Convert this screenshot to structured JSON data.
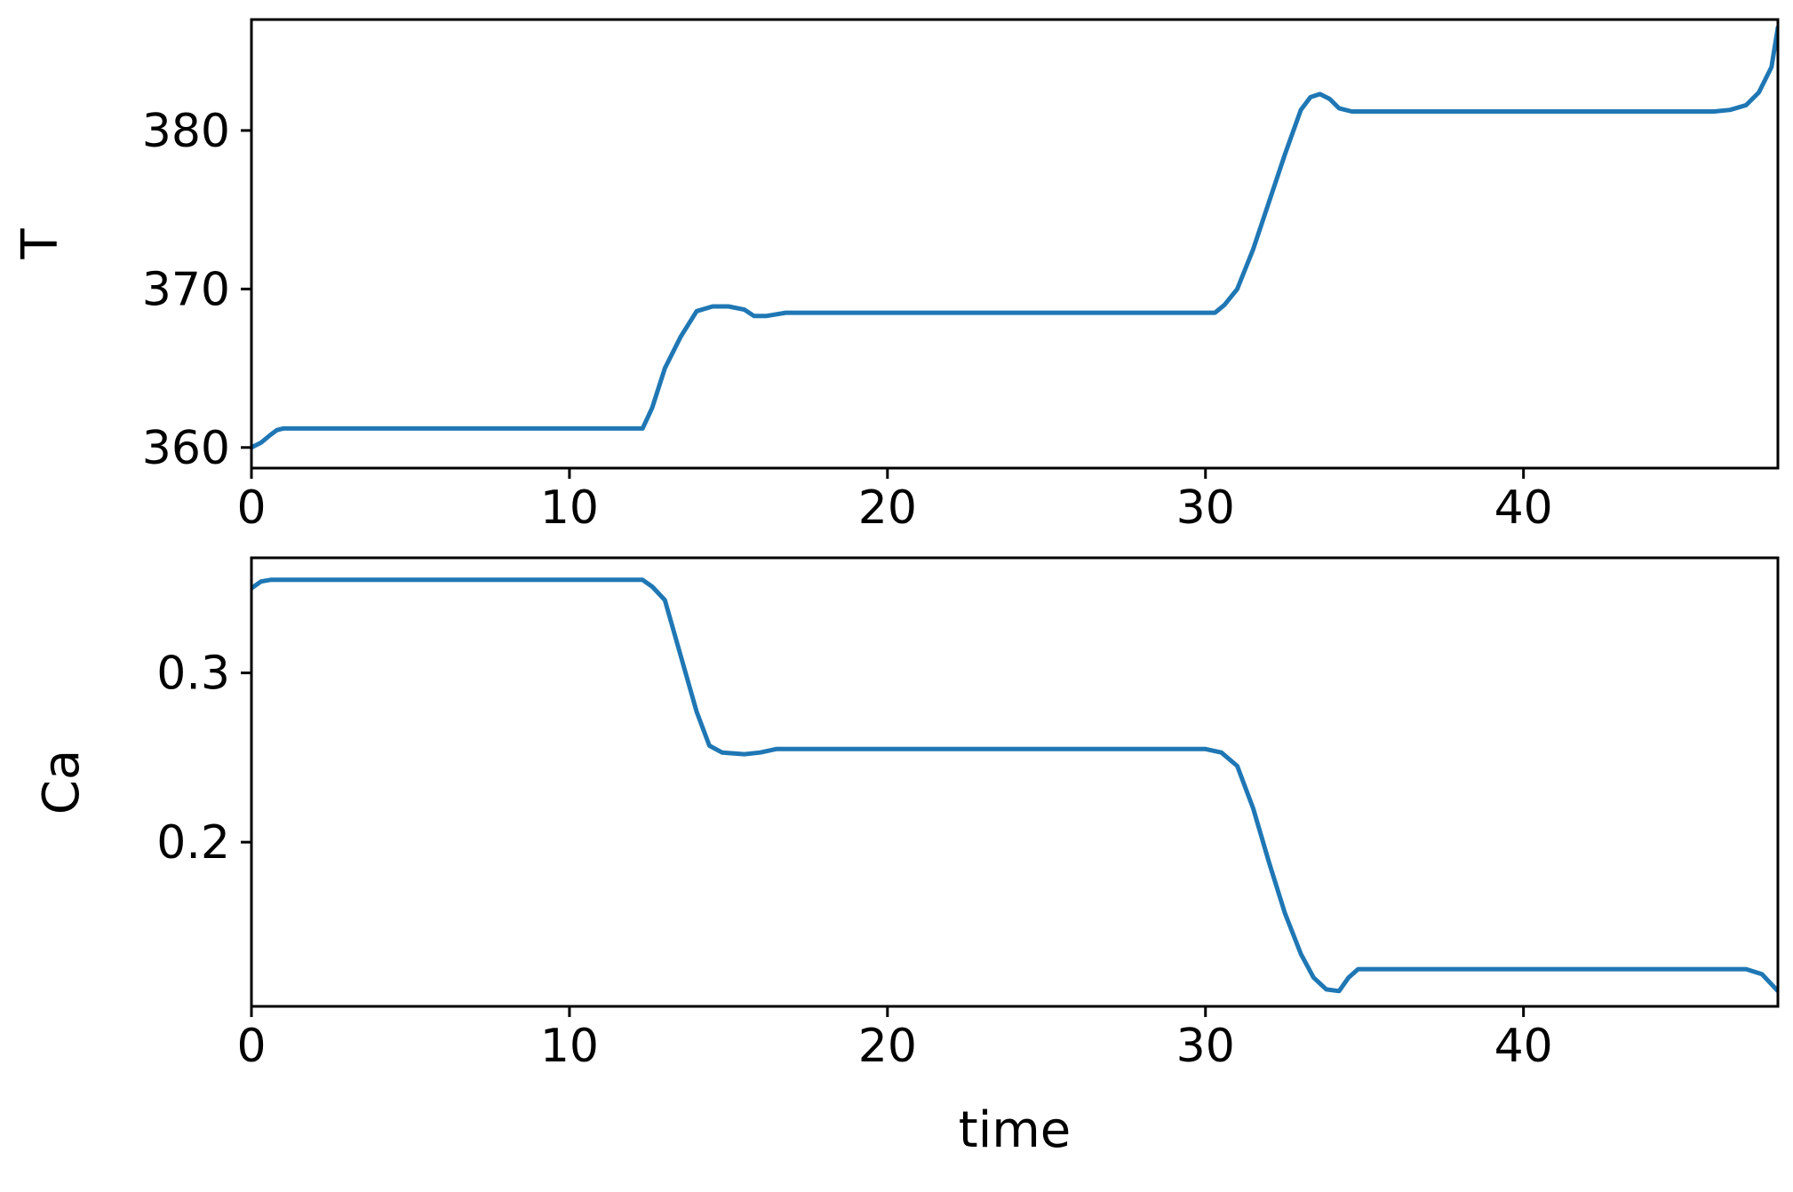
{
  "colors": {
    "line": "#1f77b4",
    "axes": "#000000",
    "background": "#ffffff"
  },
  "chart_data": [
    {
      "type": "line",
      "title": "",
      "xlabel": "",
      "ylabel": "T",
      "xlim": [
        0,
        48
      ],
      "ylim": [
        358.7,
        387
      ],
      "xticks": [
        0,
        10,
        20,
        30,
        40
      ],
      "yticks": [
        360,
        370,
        380
      ],
      "grid": false,
      "series": [
        {
          "x": [
            0,
            0.3,
            0.6,
            0.8,
            1,
            2,
            5,
            8,
            10,
            12,
            12.3,
            12.6,
            13,
            13.5,
            14,
            14.5,
            15,
            15.5,
            15.8,
            16.2,
            16.8,
            17,
            20,
            25,
            30,
            30.3,
            30.6,
            31,
            31.5,
            32,
            32.5,
            33,
            33.3,
            33.6,
            33.9,
            34.2,
            34.6,
            35,
            36,
            40,
            44,
            46,
            46.5,
            47,
            47.4,
            47.8,
            48
          ],
          "y": [
            360,
            360.3,
            360.8,
            361.1,
            361.2,
            361.2,
            361.2,
            361.2,
            361.2,
            361.2,
            361.2,
            362.5,
            365,
            367,
            368.6,
            368.9,
            368.9,
            368.7,
            368.3,
            368.3,
            368.5,
            368.5,
            368.5,
            368.5,
            368.5,
            368.5,
            369,
            370,
            372.5,
            375.5,
            378.5,
            381.3,
            382.1,
            382.3,
            382,
            381.4,
            381.2,
            381.2,
            381.2,
            381.2,
            381.2,
            381.2,
            381.3,
            381.6,
            382.4,
            384,
            386.5
          ]
        }
      ]
    },
    {
      "type": "line",
      "title": "",
      "xlabel": "time",
      "ylabel": "Ca",
      "xlim": [
        0,
        48
      ],
      "ylim": [
        0.103,
        0.368
      ],
      "xticks": [
        0,
        10,
        20,
        30,
        40
      ],
      "yticks": [
        0.2,
        0.3
      ],
      "grid": false,
      "series": [
        {
          "x": [
            0,
            0.3,
            0.6,
            1,
            5,
            10,
            12,
            12.3,
            12.6,
            13,
            13.5,
            14,
            14.4,
            14.8,
            15.5,
            16,
            16.5,
            20,
            25,
            30,
            30.5,
            31,
            31.5,
            32,
            32.5,
            33,
            33.4,
            33.8,
            34.2,
            34.5,
            34.8,
            35.5,
            40,
            45,
            47,
            47.5,
            48
          ],
          "y": [
            0.35,
            0.354,
            0.355,
            0.355,
            0.355,
            0.355,
            0.355,
            0.355,
            0.351,
            0.343,
            0.31,
            0.277,
            0.257,
            0.253,
            0.252,
            0.253,
            0.255,
            0.255,
            0.255,
            0.255,
            0.253,
            0.245,
            0.22,
            0.188,
            0.158,
            0.134,
            0.12,
            0.113,
            0.112,
            0.12,
            0.125,
            0.125,
            0.125,
            0.125,
            0.125,
            0.122,
            0.112
          ]
        }
      ]
    }
  ]
}
